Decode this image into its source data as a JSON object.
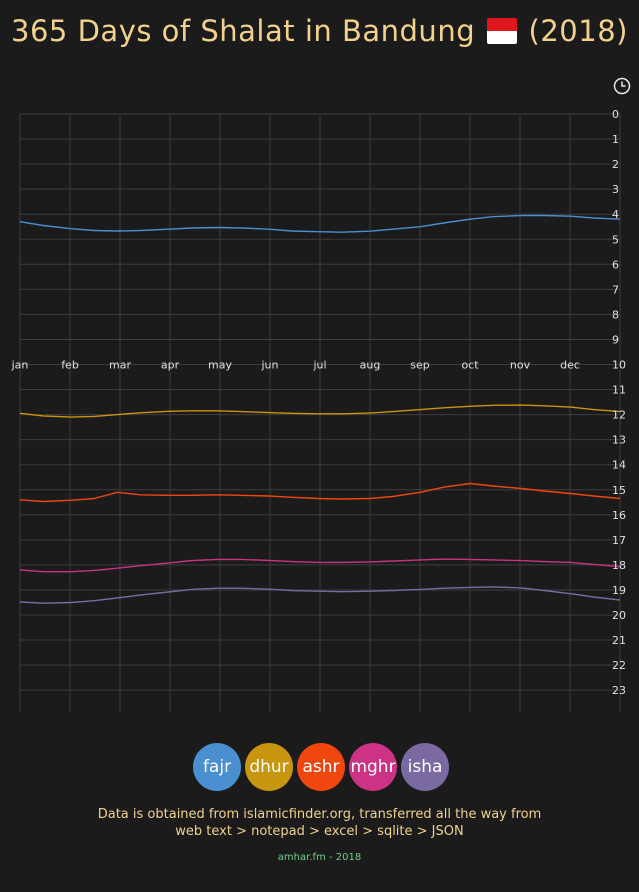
{
  "header": {
    "title_prefix": "365 Days of Shalat in Bandung",
    "title_suffix": "(2018)",
    "flag_colors": [
      "#e0161e",
      "#ffffff"
    ]
  },
  "controls": {
    "clock_icon": "clock-icon"
  },
  "legend": [
    {
      "label": "fajr",
      "color": "#4a8fcf"
    },
    {
      "label": "dhur",
      "color": "#c8950e"
    },
    {
      "label": "ashr",
      "color": "#f0470f"
    },
    {
      "label": "mghr",
      "color": "#cc3385"
    },
    {
      "label": "isha",
      "color": "#7a6aa1"
    }
  ],
  "footer": {
    "note_line1": "Data is obtained from islamicfinder.org, transferred all the way from",
    "note_line2": "web text > notepad > excel > sqlite > JSON",
    "credit": "amhar.fm - 2018"
  },
  "chart_data": {
    "type": "line",
    "y_ticks": [
      "0",
      "1",
      "2",
      "3",
      "4",
      "5",
      "6",
      "7",
      "8",
      "9",
      "10",
      "11",
      "12",
      "13",
      "14",
      "15",
      "16",
      "17",
      "18",
      "19",
      "20",
      "21",
      "22",
      "23"
    ],
    "ylim": [
      0,
      24
    ],
    "month_labels": [
      "jan",
      "feb",
      "mar",
      "apr",
      "may",
      "jun",
      "jul",
      "aug",
      "sep",
      "oct",
      "nov",
      "dec"
    ],
    "grid": true,
    "x_days": [
      1,
      15,
      32,
      46,
      60,
      74,
      91,
      105,
      121,
      135,
      152,
      166,
      182,
      196,
      213,
      227,
      244,
      258,
      274,
      288,
      305,
      319,
      335,
      349,
      365
    ],
    "series": [
      {
        "name": "fajr",
        "color": "#4a8fcf",
        "values": [
          4.3,
          4.45,
          4.58,
          4.65,
          4.67,
          4.65,
          4.6,
          4.55,
          4.53,
          4.55,
          4.6,
          4.67,
          4.7,
          4.72,
          4.68,
          4.6,
          4.5,
          4.35,
          4.2,
          4.1,
          4.05,
          4.05,
          4.08,
          4.15,
          4.2
        ]
      },
      {
        "name": "dhur",
        "color": "#c8950e",
        "values": [
          11.95,
          12.05,
          12.1,
          12.07,
          12.0,
          11.93,
          11.87,
          11.85,
          11.85,
          11.88,
          11.92,
          11.95,
          11.97,
          11.97,
          11.94,
          11.88,
          11.8,
          11.73,
          11.67,
          11.63,
          11.62,
          11.65,
          11.7,
          11.8,
          11.88
        ]
      },
      {
        "name": "ashr",
        "color": "#f0470f",
        "values": [
          15.4,
          15.47,
          15.42,
          15.35,
          15.1,
          15.2,
          15.22,
          15.22,
          15.2,
          15.22,
          15.25,
          15.3,
          15.35,
          15.37,
          15.35,
          15.27,
          15.1,
          14.9,
          14.75,
          14.85,
          14.95,
          15.05,
          15.15,
          15.25,
          15.35
        ]
      },
      {
        "name": "mghr",
        "color": "#cc3385",
        "values": [
          18.2,
          18.27,
          18.27,
          18.22,
          18.13,
          18.03,
          17.93,
          17.83,
          17.78,
          17.78,
          17.82,
          17.87,
          17.9,
          17.9,
          17.88,
          17.85,
          17.8,
          17.77,
          17.78,
          17.8,
          17.83,
          17.87,
          17.9,
          17.98,
          18.07
        ]
      },
      {
        "name": "isha",
        "color": "#7a6aa1",
        "values": [
          19.48,
          19.53,
          19.5,
          19.43,
          19.32,
          19.2,
          19.08,
          18.98,
          18.93,
          18.93,
          18.97,
          19.02,
          19.05,
          19.07,
          19.05,
          19.02,
          18.98,
          18.93,
          18.9,
          18.88,
          18.92,
          19.02,
          19.15,
          19.28,
          19.4
        ]
      }
    ]
  }
}
